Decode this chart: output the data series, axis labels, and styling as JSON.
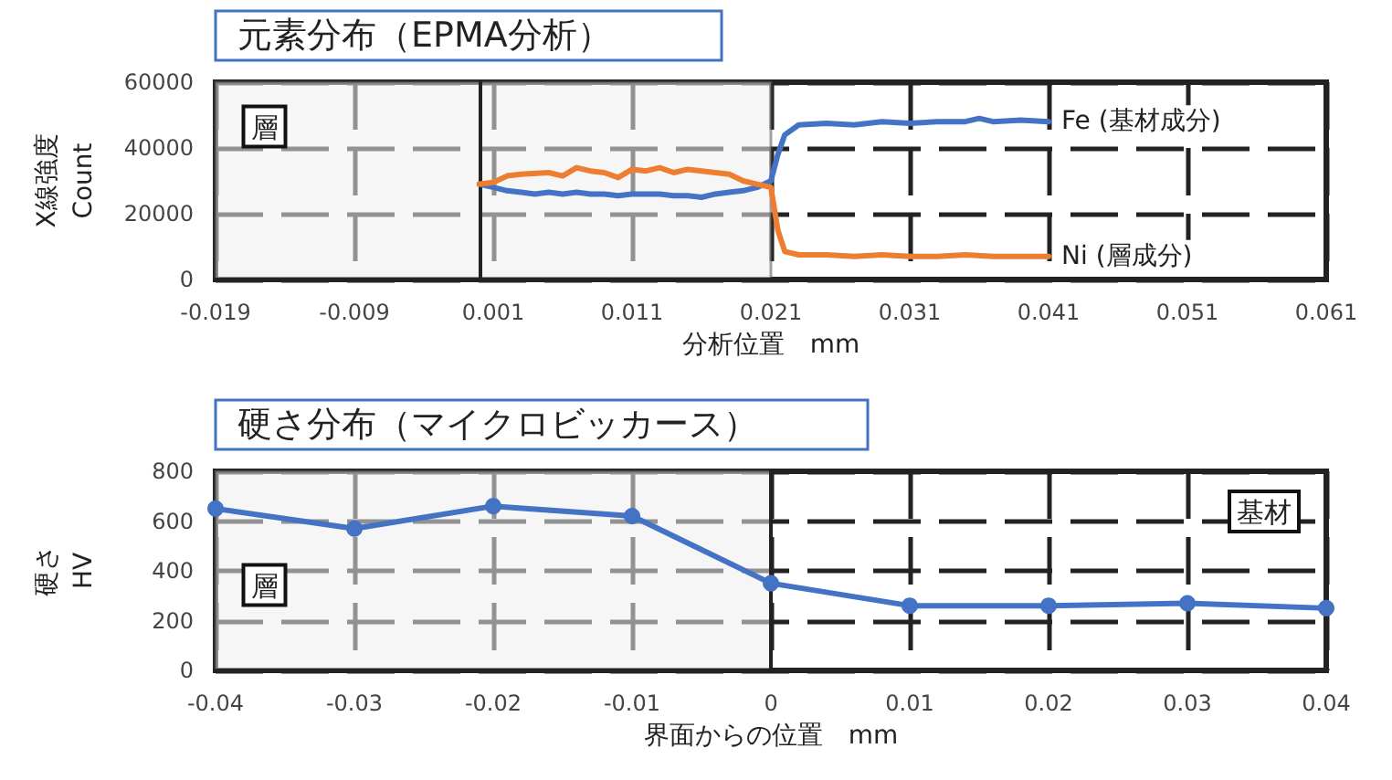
{
  "chart_data": [
    {
      "type": "line",
      "title": "元素分布（EPMA分析）",
      "xlabel": "分析位置　mm",
      "ylabel": "X線強度\nCount",
      "xlim": [
        -0.019,
        0.061
      ],
      "xticks": [
        -0.019,
        -0.009,
        0.001,
        0.011,
        0.021,
        0.031,
        0.041,
        0.051,
        0.061
      ],
      "ylim": [
        0,
        60000
      ],
      "yticks": [
        0,
        20000,
        40000,
        60000
      ],
      "grid": true,
      "legend": false,
      "marker": "none",
      "line_style": "solid",
      "bands": [
        {
          "axis": "x",
          "from": -0.019,
          "to": 0.021,
          "label": "層",
          "color": "#efefef"
        }
      ],
      "series": [
        {
          "name": "Fe (基材成分)",
          "color": "#4472c4",
          "x": [
            0.0,
            0.001,
            0.002,
            0.003,
            0.004,
            0.005,
            0.006,
            0.007,
            0.008,
            0.009,
            0.01,
            0.011,
            0.012,
            0.013,
            0.014,
            0.015,
            0.016,
            0.017,
            0.018,
            0.019,
            0.02,
            0.021,
            0.0215,
            0.022,
            0.023,
            0.025,
            0.027,
            0.029,
            0.031,
            0.033,
            0.035,
            0.036,
            0.037,
            0.039,
            0.041
          ],
          "values": [
            29000,
            28000,
            27000,
            26500,
            26000,
            26500,
            26000,
            26500,
            26000,
            26000,
            25500,
            26000,
            26000,
            26000,
            25500,
            25500,
            25000,
            26000,
            26500,
            27000,
            28000,
            30000,
            38000,
            44000,
            47000,
            47500,
            47000,
            48000,
            47500,
            48000,
            48000,
            49000,
            48000,
            48500,
            48000
          ]
        },
        {
          "name": "Ni (層成分)",
          "color": "#ed7d31",
          "x": [
            0.0,
            0.001,
            0.002,
            0.003,
            0.005,
            0.006,
            0.007,
            0.008,
            0.009,
            0.01,
            0.011,
            0.012,
            0.013,
            0.014,
            0.015,
            0.016,
            0.017,
            0.018,
            0.019,
            0.02,
            0.021,
            0.0215,
            0.022,
            0.023,
            0.025,
            0.027,
            0.029,
            0.031,
            0.033,
            0.035,
            0.037,
            0.039,
            0.041
          ],
          "values": [
            29000,
            29500,
            31500,
            32000,
            32500,
            31500,
            34000,
            33000,
            32500,
            31000,
            33500,
            33000,
            34000,
            32500,
            33500,
            33000,
            32500,
            32000,
            30000,
            29000,
            28000,
            15000,
            8500,
            7500,
            7500,
            7000,
            7500,
            7000,
            7000,
            7500,
            7000,
            7000,
            7000
          ]
        }
      ]
    },
    {
      "type": "line",
      "title": "硬さ分布（マイクロビッカース）",
      "xlabel": "界面からの位置　mm",
      "ylabel": "硬さ\nHV",
      "xlim": [
        -0.04,
        0.04
      ],
      "xticks": [
        -0.04,
        -0.03,
        -0.02,
        -0.01,
        0,
        0.01,
        0.02,
        0.03,
        0.04
      ],
      "ylim": [
        0,
        800
      ],
      "yticks": [
        0,
        200,
        400,
        600,
        800
      ],
      "grid": true,
      "legend": false,
      "marker": "circle",
      "line_style": "solid",
      "bands": [
        {
          "axis": "x",
          "from": -0.04,
          "to": 0,
          "label": "層",
          "color": "#efefef"
        }
      ],
      "annotations": [
        "基材"
      ],
      "series": [
        {
          "color": "#4472c4",
          "x": [
            -0.04,
            -0.03,
            -0.02,
            -0.01,
            0,
            0.01,
            0.02,
            0.03,
            0.04
          ],
          "values": [
            650,
            570,
            660,
            620,
            350,
            260,
            260,
            270,
            250
          ]
        }
      ]
    }
  ]
}
